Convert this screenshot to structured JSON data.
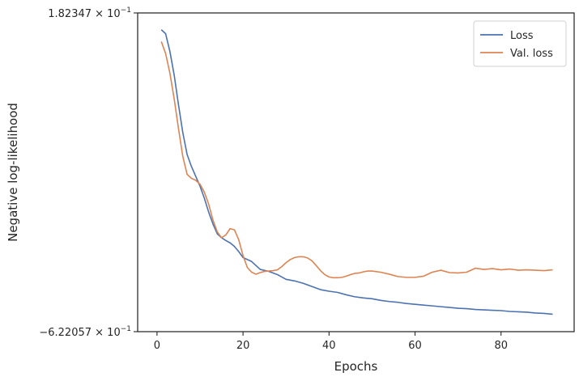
{
  "chart_data": {
    "type": "line",
    "xlabel": "Epochs",
    "ylabel": "Negative log-likelihood",
    "xlim": [
      -4.5,
      97
    ],
    "ylim": [
      -0.622057,
      0.182347
    ],
    "x_ticks": [
      0,
      20,
      40,
      60,
      80
    ],
    "x_tick_labels": [
      "0",
      "20",
      "40",
      "60",
      "80"
    ],
    "y_ticks": [
      0.182347,
      -0.622057
    ],
    "y_tick_labels": [
      {
        "mantissa": "1.82347",
        "base": "10",
        "exp": "−1"
      },
      {
        "mantissa": "−6.22057",
        "base": "10",
        "exp": "−1"
      }
    ],
    "y_tick_sep": "×",
    "legend": {
      "position": "upper right"
    },
    "grid": false,
    "series": [
      {
        "name": "Loss",
        "color": "#4c72b0",
        "x": [
          1,
          2,
          3,
          4,
          5,
          6,
          7,
          8,
          9,
          10,
          11,
          12,
          13,
          14,
          15,
          16,
          17,
          18,
          19,
          20,
          22,
          24,
          26,
          28,
          30,
          32,
          34,
          36,
          38,
          40,
          42,
          44,
          46,
          48,
          50,
          52,
          54,
          56,
          58,
          60,
          62,
          64,
          66,
          68,
          70,
          72,
          74,
          76,
          78,
          80,
          82,
          84,
          86,
          88,
          90,
          92
        ],
        "values": [
          0.14,
          0.13,
          0.085,
          0.025,
          -0.05,
          -0.12,
          -0.175,
          -0.205,
          -0.23,
          -0.255,
          -0.285,
          -0.32,
          -0.35,
          -0.375,
          -0.385,
          -0.392,
          -0.398,
          -0.407,
          -0.42,
          -0.435,
          -0.445,
          -0.465,
          -0.47,
          -0.478,
          -0.49,
          -0.494,
          -0.5,
          -0.508,
          -0.516,
          -0.52,
          -0.523,
          -0.529,
          -0.534,
          -0.537,
          -0.539,
          -0.543,
          -0.546,
          -0.548,
          -0.551,
          -0.553,
          -0.555,
          -0.557,
          -0.559,
          -0.561,
          -0.563,
          -0.564,
          -0.566,
          -0.567,
          -0.568,
          -0.569,
          -0.571,
          -0.572,
          -0.573,
          -0.575,
          -0.576,
          -0.578
        ]
      },
      {
        "name": "Val. loss",
        "color": "#dd8452",
        "x": [
          1,
          2,
          3,
          4,
          5,
          6,
          7,
          8,
          9,
          10,
          11,
          12,
          13,
          14,
          15,
          16,
          17,
          18,
          19,
          20,
          21,
          22,
          23,
          24,
          25,
          26,
          27,
          28,
          29,
          30,
          31,
          32,
          33,
          34,
          35,
          36,
          37,
          38,
          39,
          40,
          41,
          42,
          43,
          44,
          45,
          46,
          47,
          48,
          49,
          50,
          52,
          54,
          56,
          58,
          60,
          62,
          64,
          66,
          68,
          70,
          72,
          74,
          76,
          78,
          80,
          82,
          84,
          86,
          88,
          90,
          92
        ],
        "values": [
          0.11,
          0.08,
          0.03,
          -0.035,
          -0.11,
          -0.18,
          -0.225,
          -0.235,
          -0.24,
          -0.25,
          -0.27,
          -0.3,
          -0.34,
          -0.37,
          -0.385,
          -0.378,
          -0.362,
          -0.365,
          -0.39,
          -0.43,
          -0.46,
          -0.472,
          -0.477,
          -0.473,
          -0.47,
          -0.469,
          -0.468,
          -0.466,
          -0.458,
          -0.448,
          -0.44,
          -0.435,
          -0.433,
          -0.433,
          -0.436,
          -0.443,
          -0.455,
          -0.468,
          -0.478,
          -0.484,
          -0.486,
          -0.486,
          -0.485,
          -0.482,
          -0.478,
          -0.475,
          -0.474,
          -0.471,
          -0.469,
          -0.469,
          -0.472,
          -0.477,
          -0.483,
          -0.485,
          -0.485,
          -0.482,
          -0.472,
          -0.467,
          -0.473,
          -0.474,
          -0.472,
          -0.462,
          -0.465,
          -0.463,
          -0.466,
          -0.464,
          -0.467,
          -0.466,
          -0.467,
          -0.468,
          -0.466
        ]
      }
    ]
  }
}
